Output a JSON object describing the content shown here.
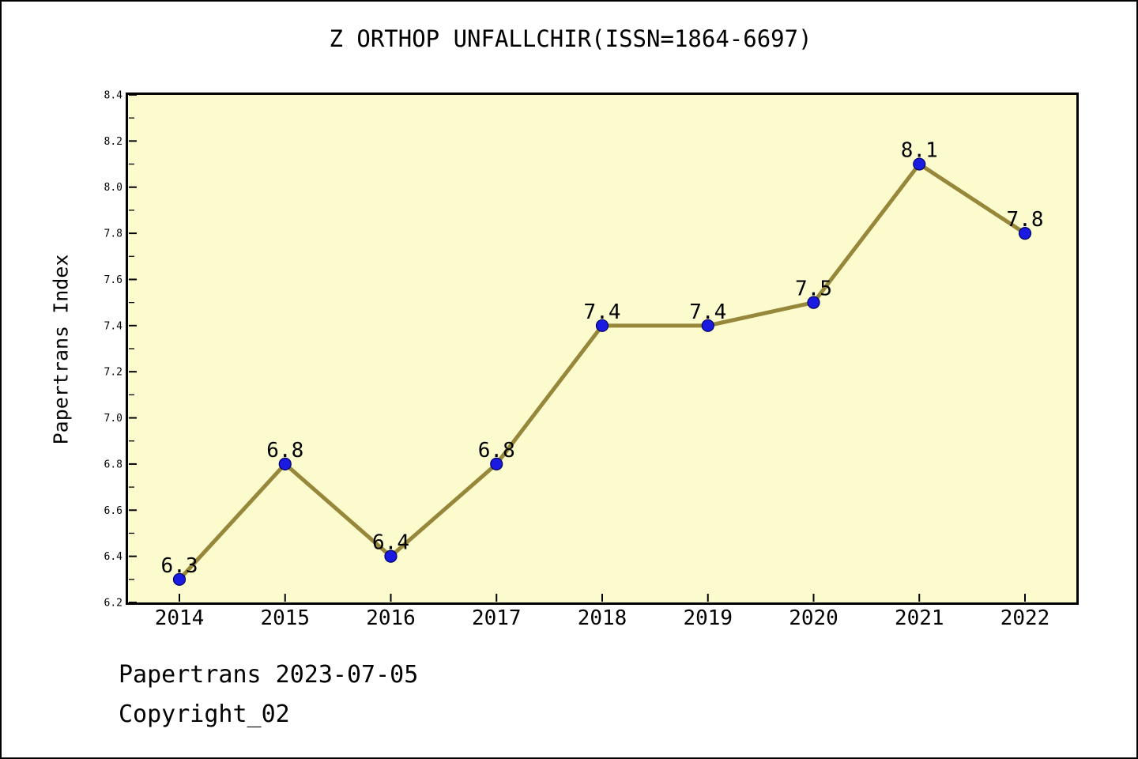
{
  "chart_data": {
    "type": "line",
    "title": "Z ORTHOP UNFALLCHIR(ISSN=1864-6697)",
    "xlabel": "",
    "ylabel": "Papertrans Index",
    "categories": [
      "2014",
      "2015",
      "2016",
      "2017",
      "2018",
      "2019",
      "2020",
      "2021",
      "2022"
    ],
    "series": [
      {
        "name": "Papertrans Index",
        "values": [
          6.3,
          6.8,
          6.4,
          6.8,
          7.4,
          7.4,
          7.5,
          8.1,
          7.8
        ]
      }
    ],
    "point_labels": [
      "6.3",
      "6.8",
      "6.4",
      "6.8",
      "7.4",
      "7.4",
      "7.5",
      "8.1",
      "7.8"
    ],
    "ylim": [
      6.2,
      8.4
    ],
    "ytick_step": 0.2,
    "ytick_minor_step": 0.1,
    "ytick_labels": [
      "6.2",
      "6.4",
      "6.6",
      "6.8",
      "7.0",
      "7.2",
      "7.4",
      "7.6",
      "7.8",
      "8.0",
      "8.2",
      "8.4"
    ],
    "grid": false,
    "legend_position": "none",
    "tick_direction": "in",
    "colors": {
      "line": "#97873B",
      "marker_fill": "#1A1AE0",
      "marker_edge": "#000060",
      "plot_background": "#FBFBCE",
      "axis": "#000000",
      "text": "#000000",
      "page_background": "#FFFFFF"
    }
  },
  "footer": {
    "line1": "Papertrans 2023-07-05",
    "line2": "Copyright_02"
  }
}
